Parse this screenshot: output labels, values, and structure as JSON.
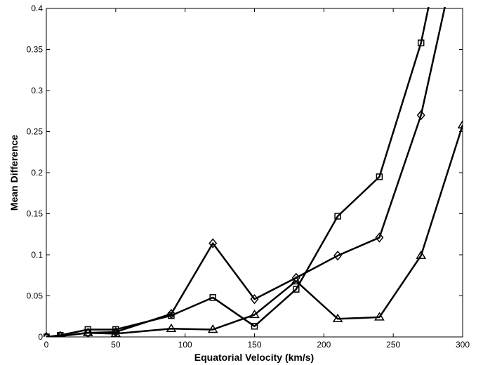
{
  "chart_data": {
    "type": "line",
    "title": "",
    "xlabel": "Equatorial Velocity (km/s)",
    "ylabel": "Mean Difference",
    "xlim": [
      0,
      300
    ],
    "ylim": [
      0,
      0.4
    ],
    "xticks": [
      0,
      50,
      100,
      150,
      200,
      250,
      300
    ],
    "xtick_labels": [
      "0",
      "50",
      "100",
      "150",
      "200",
      "250",
      "300"
    ],
    "yticks": [
      0,
      0.05,
      0.1,
      0.15,
      0.2,
      0.25,
      0.3,
      0.35,
      0.4
    ],
    "ytick_labels": [
      "0",
      "0.05",
      "0.1",
      "0.15",
      "0.2",
      "0.25",
      "0.3",
      "0.35",
      "0.4"
    ],
    "grid": false,
    "legend": "none",
    "line_color": "#000000",
    "series": [
      {
        "marker": "square",
        "x": [
          0,
          10,
          30,
          50,
          90,
          120,
          150,
          180,
          210,
          240,
          270,
          300
        ],
        "y": [
          0.0,
          0.002,
          0.009,
          0.009,
          0.026,
          0.048,
          0.013,
          0.058,
          0.147,
          0.195,
          0.358,
          0.6
        ]
      },
      {
        "marker": "diamond",
        "x": [
          0,
          10,
          30,
          50,
          90,
          120,
          150,
          180,
          210,
          240,
          270,
          300
        ],
        "y": [
          0.0,
          0.001,
          0.005,
          0.006,
          0.028,
          0.114,
          0.046,
          0.072,
          0.099,
          0.121,
          0.27,
          0.5
        ]
      },
      {
        "marker": "triangle",
        "x": [
          0,
          10,
          30,
          50,
          90,
          120,
          150,
          180,
          210,
          240,
          270,
          300
        ],
        "y": [
          0.0,
          0.001,
          0.005,
          0.004,
          0.01,
          0.009,
          0.027,
          0.068,
          0.022,
          0.024,
          0.099,
          0.258
        ]
      }
    ]
  }
}
